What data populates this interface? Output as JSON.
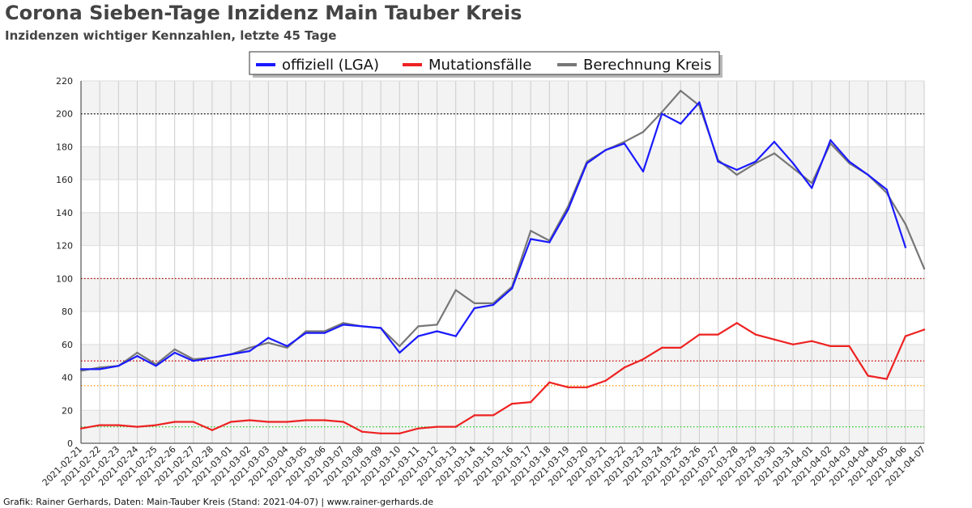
{
  "title": "Corona Sieben-Tage Inzidenz Main Tauber Kreis",
  "subtitle": "Inzidenzen wichtiger Kennzahlen, letzte 45 Tage",
  "footer": "Grafik: Rainer Gerhards, Daten: Main-Tauber Kreis (Stand: 2021-04-07) | www.rainer-gerhards.de",
  "chart_data": {
    "type": "line",
    "categories": [
      "2021-02-21",
      "2021-02-22",
      "2021-02-23",
      "2021-02-24",
      "2021-02-25",
      "2021-02-26",
      "2021-02-27",
      "2021-02-28",
      "2021-03-01",
      "2021-03-02",
      "2021-03-03",
      "2021-03-04",
      "2021-03-05",
      "2021-03-06",
      "2021-03-07",
      "2021-03-08",
      "2021-03-09",
      "2021-03-10",
      "2021-03-11",
      "2021-03-12",
      "2021-03-13",
      "2021-03-14",
      "2021-03-15",
      "2021-03-16",
      "2021-03-17",
      "2021-03-18",
      "2021-03-19",
      "2021-03-20",
      "2021-03-21",
      "2021-03-22",
      "2021-03-23",
      "2021-03-24",
      "2021-03-25",
      "2021-03-26",
      "2021-03-27",
      "2021-03-28",
      "2021-03-29",
      "2021-03-30",
      "2021-03-31",
      "2021-04-01",
      "2021-04-02",
      "2021-04-03",
      "2021-04-04",
      "2021-04-05",
      "2021-04-06",
      "2021-04-07"
    ],
    "ylim": [
      0,
      220
    ],
    "yticks": [
      0,
      20,
      40,
      60,
      80,
      100,
      120,
      140,
      160,
      180,
      200,
      220
    ],
    "grid": true,
    "legend_position": "top-center",
    "series": [
      {
        "name": "offiziell (LGA)",
        "color": "#1a1aff",
        "values": [
          45,
          45,
          47,
          53,
          47,
          55,
          50,
          52,
          54,
          56,
          64,
          59,
          67,
          67,
          72,
          71,
          70,
          55,
          65,
          68,
          65,
          82,
          84,
          94,
          124,
          122,
          142,
          170,
          178,
          182,
          165,
          200,
          194,
          207,
          171,
          166,
          171,
          183,
          170,
          155,
          184,
          171,
          163,
          154,
          119,
          null
        ]
      },
      {
        "name": "Mutationsfälle",
        "color": "#ee2222",
        "values": [
          9,
          11,
          11,
          10,
          11,
          13,
          13,
          8,
          13,
          14,
          13,
          13,
          14,
          14,
          13,
          7,
          6,
          6,
          9,
          10,
          10,
          17,
          17,
          24,
          25,
          37,
          34,
          34,
          38,
          46,
          51,
          58,
          58,
          66,
          66,
          73,
          66,
          63,
          60,
          62,
          59,
          59,
          41,
          39,
          65,
          69
        ]
      },
      {
        "name": "Berechnung Kreis",
        "color": "#777777",
        "values": [
          44,
          46,
          47,
          55,
          48,
          57,
          51,
          52,
          54,
          58,
          61,
          58,
          68,
          68,
          73,
          71,
          70,
          59,
          71,
          72,
          93,
          85,
          85,
          95,
          129,
          123,
          144,
          171,
          178,
          183,
          189,
          201,
          214,
          205,
          172,
          163,
          170,
          176,
          167,
          158,
          182,
          170,
          163,
          152,
          133,
          106
        ]
      }
    ],
    "reference_lines": [
      {
        "value": 200,
        "color": "#000000"
      },
      {
        "value": 100,
        "color": "#aa0000"
      },
      {
        "value": 50,
        "color": "#cc0000"
      },
      {
        "value": 35,
        "color": "#ff9900"
      },
      {
        "value": 10,
        "color": "#22cc22"
      }
    ]
  }
}
